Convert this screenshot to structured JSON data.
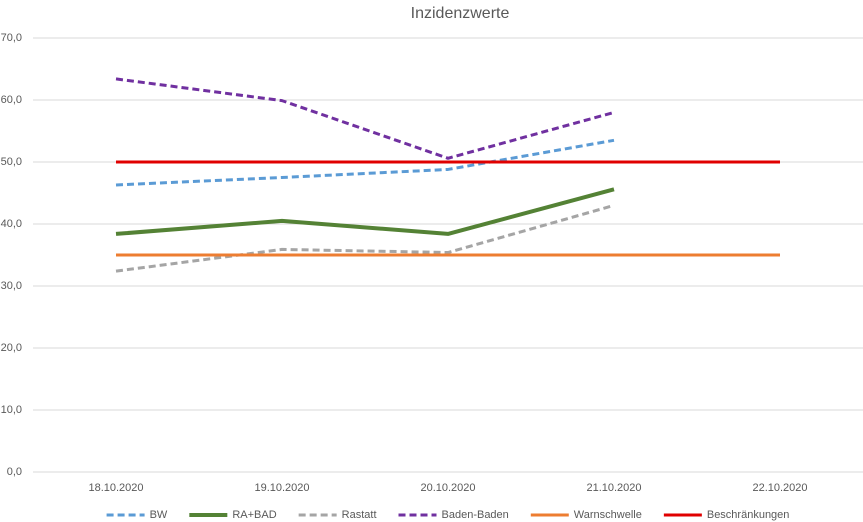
{
  "chart_data": {
    "type": "line",
    "title": "Inzidenzwerte",
    "categories": [
      "18.10.2020",
      "19.10.2020",
      "20.10.2020",
      "21.10.2020",
      "22.10.2020"
    ],
    "series": [
      {
        "name": "BW",
        "color": "#5b9bd5",
        "dashed": true,
        "line_width": 3,
        "values": [
          46.3,
          47.5,
          48.8,
          53.5,
          null
        ]
      },
      {
        "name": "RA+BAD",
        "color": "#548235",
        "dashed": false,
        "line_width": 4,
        "values": [
          38.4,
          40.5,
          38.4,
          45.6,
          null
        ]
      },
      {
        "name": "Rastatt",
        "color": "#a5a5a5",
        "dashed": true,
        "line_width": 3,
        "values": [
          32.4,
          35.9,
          35.4,
          43.0,
          null
        ]
      },
      {
        "name": "Baden-Baden",
        "color": "#7030a0",
        "dashed": true,
        "line_width": 3,
        "values": [
          63.4,
          59.9,
          50.6,
          58.0,
          null
        ]
      },
      {
        "name": "Warnschwelle",
        "color": "#ed7d31",
        "dashed": false,
        "line_width": 3,
        "values": [
          35,
          35,
          35,
          35,
          35
        ]
      },
      {
        "name": "Beschränkungen",
        "color": "#e00000",
        "dashed": false,
        "line_width": 3,
        "values": [
          50,
          50,
          50,
          50,
          50
        ]
      }
    ],
    "ylim": [
      0,
      70
    ],
    "yticks": [
      {
        "value": 0,
        "label": "0,0"
      },
      {
        "value": 10,
        "label": "10,0"
      },
      {
        "value": 20,
        "label": "20,0"
      },
      {
        "value": 30,
        "label": "30,0"
      },
      {
        "value": 40,
        "label": "40,0"
      },
      {
        "value": 50,
        "label": "50,0"
      },
      {
        "value": 60,
        "label": "60,0"
      },
      {
        "value": 70,
        "label": "70,0"
      }
    ],
    "grid": true,
    "legend": "bottom"
  }
}
